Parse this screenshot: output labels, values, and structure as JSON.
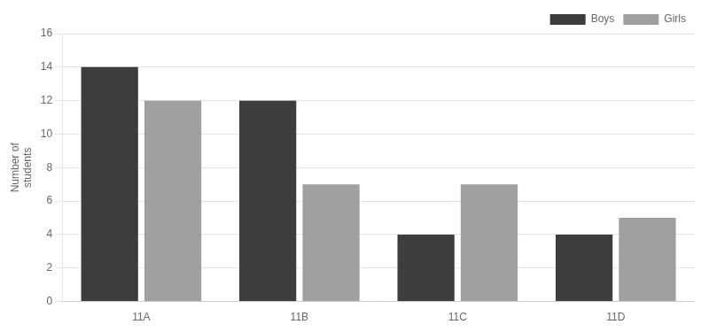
{
  "chart_data": {
    "type": "bar",
    "categories": [
      "11A",
      "11B",
      "11C",
      "11D"
    ],
    "series": [
      {
        "name": "Boys",
        "color": "#3d3d3d",
        "values": [
          14,
          12,
          4,
          4
        ]
      },
      {
        "name": "Girls",
        "color": "#a0a0a0",
        "values": [
          12,
          7,
          7,
          5
        ]
      }
    ],
    "ylabel": "Number of\nstudents",
    "ylim": [
      0,
      16
    ],
    "yticks": [
      0,
      2,
      4,
      6,
      8,
      10,
      12,
      14,
      16
    ],
    "grid": true,
    "legend": "upper right"
  }
}
